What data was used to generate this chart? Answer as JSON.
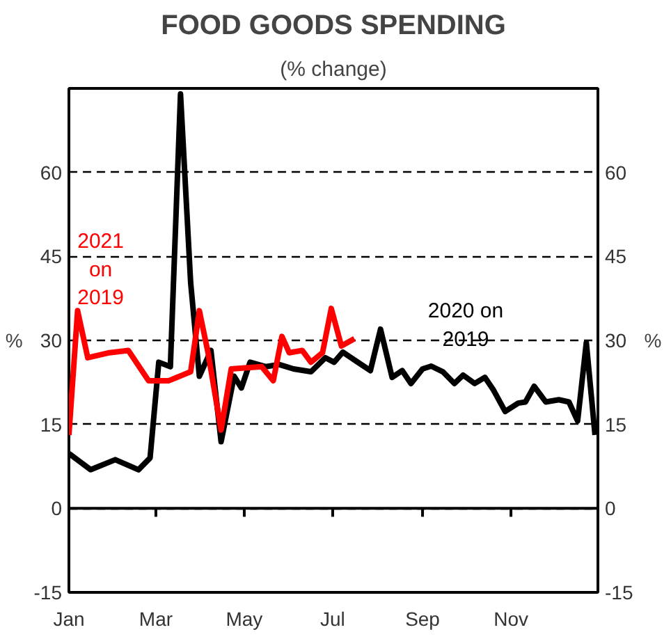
{
  "chart_data": {
    "type": "line",
    "title": "FOOD GOODS SPENDING",
    "subtitle": "(% change)",
    "ylabel": "%",
    "y2label": "%",
    "series": [
      {
        "name": "2020 on\n2019",
        "color": "#000000",
        "x": [
          "2020-01-01",
          "2020-01-16",
          "2020-02-02",
          "2020-02-18",
          "2020-02-26",
          "2020-03-03",
          "2020-03-11",
          "2020-03-18",
          "2020-03-25",
          "2020-03-31",
          "2020-04-08",
          "2020-04-15",
          "2020-04-24",
          "2020-04-29",
          "2020-05-05",
          "2020-05-16",
          "2020-05-25",
          "2020-06-04",
          "2020-06-16",
          "2020-06-26",
          "2020-07-02",
          "2020-07-08",
          "2020-07-16",
          "2020-07-27",
          "2020-08-03",
          "2020-08-11",
          "2020-08-18",
          "2020-08-24",
          "2020-09-01",
          "2020-09-07",
          "2020-09-15",
          "2020-09-23",
          "2020-09-29",
          "2020-10-07",
          "2020-10-14",
          "2020-10-20",
          "2020-10-28",
          "2020-11-06",
          "2020-11-11",
          "2020-11-17",
          "2020-11-25",
          "2020-12-04",
          "2020-12-11",
          "2020-12-17",
          "2020-12-23",
          "2020-12-29"
        ],
        "values": [
          9.8,
          6.9,
          8.7,
          6.9,
          9.0,
          26.1,
          25.3,
          74.0,
          40.3,
          23.6,
          28.2,
          11.9,
          23.6,
          21.5,
          26.1,
          25.3,
          25.7,
          24.9,
          24.4,
          26.9,
          26.1,
          27.9,
          26.5,
          24.6,
          32.0,
          23.4,
          24.6,
          22.3,
          24.9,
          25.4,
          24.4,
          22.3,
          23.8,
          22.3,
          23.4,
          21.1,
          17.3,
          18.8,
          19.0,
          21.8,
          19.0,
          19.4,
          19.0,
          15.6,
          29.6,
          13.1
        ]
      },
      {
        "name": "2021\non\n2019",
        "color": "#ff0000",
        "x": [
          "2020-01-01",
          "2020-01-07",
          "2020-01-14",
          "2020-01-29",
          "2020-02-11",
          "2020-02-25",
          "2020-03-10",
          "2020-03-25",
          "2020-03-31",
          "2020-04-06",
          "2020-04-15",
          "2020-04-22",
          "2020-05-13",
          "2020-05-21",
          "2020-05-27",
          "2020-06-01",
          "2020-06-10",
          "2020-06-16",
          "2020-06-24",
          "2020-06-30",
          "2020-07-07",
          "2020-07-16"
        ],
        "values": [
          13.1,
          35.3,
          26.9,
          27.8,
          28.2,
          22.8,
          22.8,
          24.4,
          35.3,
          27.8,
          14.0,
          24.9,
          25.3,
          22.8,
          30.7,
          27.8,
          28.2,
          26.1,
          27.8,
          35.7,
          29.0,
          30.3
        ]
      }
    ],
    "xlim": [
      "2020-01-01",
      "2020-12-31"
    ],
    "xticks": [
      {
        "value": "2020-01-01",
        "label": "Jan"
      },
      {
        "value": "2020-03-01",
        "label": "Mar"
      },
      {
        "value": "2020-05-01",
        "label": "May"
      },
      {
        "value": "2020-07-01",
        "label": "Jul"
      },
      {
        "value": "2020-09-01",
        "label": "Sep"
      },
      {
        "value": "2020-11-01",
        "label": "Nov"
      }
    ],
    "ylim": [
      -15,
      75
    ],
    "yticks": [
      -15,
      0,
      15,
      30,
      45,
      60
    ],
    "y2lim": [
      -15,
      75
    ],
    "y2ticks": [
      -15,
      0,
      15,
      30,
      45,
      60
    ],
    "ref_lines": [
      {
        "axis": "y",
        "value": 0,
        "color": "#000000",
        "line_style": "solid"
      }
    ],
    "grid": "y",
    "line_style": "solid"
  }
}
